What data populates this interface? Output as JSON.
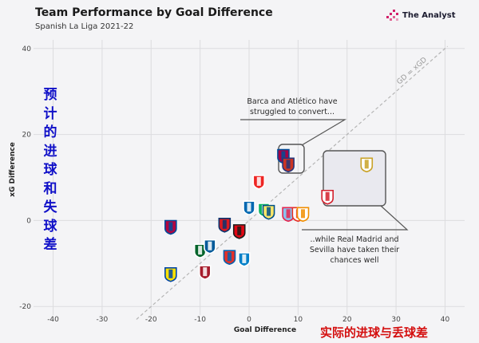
{
  "title": "Team Performance by Goal Difference",
  "subtitle": "Spanish La Liga 2021-22",
  "brand": "The Analyst",
  "cn_left": "预计的进球和失球差",
  "cn_bottom": "实际的进球与丢球差",
  "annotations": {
    "top": "Barca and Atlético have struggled to convert...",
    "bottom": "..while Real Madrid and Sevilla have taken their chances well"
  },
  "colors": {
    "background": "#f4f4f6",
    "grid": "#dcdcdf",
    "reference_line": "#b5b5b5",
    "annotation_box": "#555555",
    "brand_accent": "#d2206a"
  },
  "chart_data": {
    "type": "scatter",
    "title": "Team Performance by Goal Difference",
    "subtitle": "Spanish La Liga 2021-22",
    "xlabel": "Goal Difference",
    "ylabel": "xG Difference",
    "xlim": [
      -44,
      44
    ],
    "ylim": [
      -22,
      42
    ],
    "xticks": [
      -40,
      -30,
      -20,
      -10,
      0,
      10,
      20,
      30,
      40
    ],
    "yticks": [
      -20,
      0,
      20,
      40
    ],
    "grid": true,
    "reference_line": {
      "label": "GD = xGD"
    },
    "points": [
      {
        "team_icon": "real-madrid-crest-icon",
        "x": 24,
        "y": 13
      },
      {
        "team_icon": "sevilla-crest-icon",
        "x": 16,
        "y": 5.5
      },
      {
        "team_icon": "barcelona-crest-icon",
        "x": 7,
        "y": 15
      },
      {
        "team_icon": "atletico-crest-icon",
        "x": 8,
        "y": 13
      },
      {
        "team_icon": "athletic-club-crest-icon",
        "x": 2,
        "y": 9
      },
      {
        "team_icon": "real-sociedad-crest-icon",
        "x": 0,
        "y": 3
      },
      {
        "team_icon": "real-betis-crest-icon",
        "x": 3,
        "y": 2.5
      },
      {
        "team_icon": "villarreal-crest-icon",
        "x": 4,
        "y": 2
      },
      {
        "team_icon": "celta-crest-icon",
        "x": 8,
        "y": 1.5
      },
      {
        "team_icon": "rayo-crest-icon",
        "x": 10,
        "y": 1.5
      },
      {
        "team_icon": "valencia-crest-icon",
        "x": 11,
        "y": 1.5
      },
      {
        "team_icon": "osasuna-crest-icon",
        "x": -5,
        "y": -1
      },
      {
        "team_icon": "mallorca-crest-icon",
        "x": -2,
        "y": -2.5
      },
      {
        "team_icon": "levante-crest-icon",
        "x": -16,
        "y": -1.5
      },
      {
        "team_icon": "elche-crest-icon",
        "x": -10,
        "y": -7
      },
      {
        "team_icon": "getafe-crest-icon",
        "x": -8,
        "y": -6
      },
      {
        "team_icon": "alaves-crest-icon",
        "x": -4,
        "y": -8.5
      },
      {
        "team_icon": "espanyol-crest-icon",
        "x": -1,
        "y": -9
      },
      {
        "team_icon": "granada-crest-icon",
        "x": -9,
        "y": -12
      },
      {
        "team_icon": "cadiz-crest-icon",
        "x": -16,
        "y": -12.5
      }
    ]
  }
}
